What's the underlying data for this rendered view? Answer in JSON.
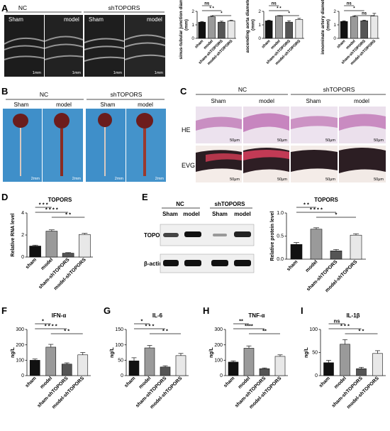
{
  "panels": {
    "A": "A",
    "B": "B",
    "C": "C",
    "D": "D",
    "E": "E",
    "F": "F",
    "G": "G",
    "H": "H",
    "I": "I"
  },
  "groups": {
    "nc": "NC",
    "sh": "shTOPORS",
    "sham": "Sham",
    "model": "model"
  },
  "scale": {
    "mm1": "1mm",
    "mm2": "2mm",
    "um50": "50μm"
  },
  "stains": {
    "he": "HE",
    "evg": "EVG"
  },
  "blot": {
    "topors": "TOPORS",
    "actin": "β-actin"
  },
  "colors": {
    "black": "#111111",
    "gray": "#9a9a9a",
    "dgray": "#555555",
    "lgray": "#e8e8e8",
    "bg_blue": "#3f8fc9",
    "tissue_pink": "#d9b3d0"
  },
  "chart_data": [
    {
      "id": "A1",
      "type": "bar",
      "categories": [
        "sham",
        "model",
        "sham-shTOPORS",
        "model-shTOPORS"
      ],
      "values": [
        1.2,
        1.6,
        1.2,
        1.3
      ],
      "errors": [
        0.05,
        0.05,
        0.07,
        0.04
      ],
      "ylabel": "sinus-tubular junction diameter (mm)",
      "ylim": [
        0,
        2
      ],
      "yticks": [
        "0",
        "1",
        "2"
      ],
      "sig": [
        "ns",
        "* *",
        "*"
      ]
    },
    {
      "id": "A2",
      "type": "bar",
      "categories": [
        "sham",
        "model",
        "sham-shTOPORS",
        "model-shTOPORS"
      ],
      "values": [
        1.3,
        1.65,
        1.2,
        1.4
      ],
      "errors": [
        0.05,
        0.04,
        0.1,
        0.08
      ],
      "ylabel": "ascending aorta diameter (mm)",
      "ylim": [
        0,
        2
      ],
      "yticks": [
        "0",
        "1",
        "2"
      ],
      "sig": [
        "ns",
        "* *",
        "*"
      ]
    },
    {
      "id": "A3",
      "type": "bar",
      "categories": [
        "sham",
        "model",
        "sham-shTOPORS",
        "model-shTOPORS"
      ],
      "values": [
        1.25,
        1.6,
        1.3,
        1.65
      ],
      "errors": [
        0.05,
        0.06,
        0.05,
        0.2
      ],
      "ylabel": "innominate artery diameter (mm)",
      "ylim": [
        0,
        2
      ],
      "yticks": [
        "0",
        "1",
        "2"
      ],
      "sig": [
        "ns",
        "*",
        "ns"
      ]
    },
    {
      "id": "D",
      "type": "bar",
      "title": "TOPORS",
      "categories": [
        "sham",
        "model",
        "sham-shTOPORS",
        "model-shTOPORS"
      ],
      "values": [
        1.0,
        2.35,
        0.35,
        2.05
      ],
      "errors": [
        0.08,
        0.12,
        0.05,
        0.1
      ],
      "ylabel": "Relative RNA level",
      "ylim": [
        0,
        4
      ],
      "yticks": [
        "0",
        "2",
        "4"
      ],
      "sig": [
        "* * *",
        "* * * *",
        "* *"
      ]
    },
    {
      "id": "E",
      "type": "bar",
      "title": "TOPORS",
      "categories": [
        "sham",
        "model",
        "sham-shTOPORS",
        "model-shTOPORS"
      ],
      "values": [
        0.32,
        0.65,
        0.18,
        0.52
      ],
      "errors": [
        0.04,
        0.03,
        0.03,
        0.03
      ],
      "ylabel": "Relative protein level",
      "ylim": [
        0,
        1.0
      ],
      "yticks": [
        "0.0",
        "0.5",
        "1.0"
      ],
      "sig": [
        "* *",
        "* * * *",
        "*"
      ]
    },
    {
      "id": "F",
      "type": "bar",
      "title": "IFN-α",
      "categories": [
        "sham",
        "model",
        "sham-shTOPORS",
        "model-shTOPORS"
      ],
      "values": [
        100,
        185,
        75,
        135
      ],
      "errors": [
        8,
        18,
        8,
        15
      ],
      "ylabel": "ng/L",
      "ylim": [
        0,
        300
      ],
      "yticks": [
        "0",
        "100",
        "200",
        "300"
      ],
      "sig": [
        "*",
        "* * * *",
        "* *"
      ]
    },
    {
      "id": "G",
      "type": "bar",
      "title": "IL-6",
      "categories": [
        "sham",
        "model",
        "sham-shTOPORS",
        "model-shTOPORS"
      ],
      "values": [
        48,
        90,
        28,
        65
      ],
      "errors": [
        10,
        8,
        4,
        7
      ],
      "ylabel": "ng/L",
      "ylim": [
        0,
        150
      ],
      "yticks": [
        "0",
        "50",
        "100",
        "150"
      ],
      "sig": [
        "*",
        "* * *",
        "* *"
      ]
    },
    {
      "id": "H",
      "type": "bar",
      "title": "TNF-α",
      "categories": [
        "sham",
        "model",
        "sham-shTOPORS",
        "model-shTOPORS"
      ],
      "values": [
        88,
        178,
        45,
        125
      ],
      "errors": [
        8,
        15,
        5,
        10
      ],
      "ylabel": "ng/L",
      "ylim": [
        0,
        300
      ],
      "yticks": [
        "0",
        "100",
        "200",
        "300"
      ],
      "sig": [
        "**",
        "****",
        "**"
      ]
    },
    {
      "id": "I",
      "type": "bar",
      "title": "IL-1β",
      "categories": [
        "sham",
        "model",
        "sham-shTOPORS",
        "model-shTOPORS"
      ],
      "values": [
        28,
        68,
        15,
        48
      ],
      "errors": [
        5,
        10,
        3,
        6
      ],
      "ylabel": "ng/L",
      "ylim": [
        0,
        100
      ],
      "yticks": [
        "0",
        "50",
        "100"
      ],
      "sig": [
        "ns",
        "* * *",
        "* *"
      ]
    }
  ]
}
